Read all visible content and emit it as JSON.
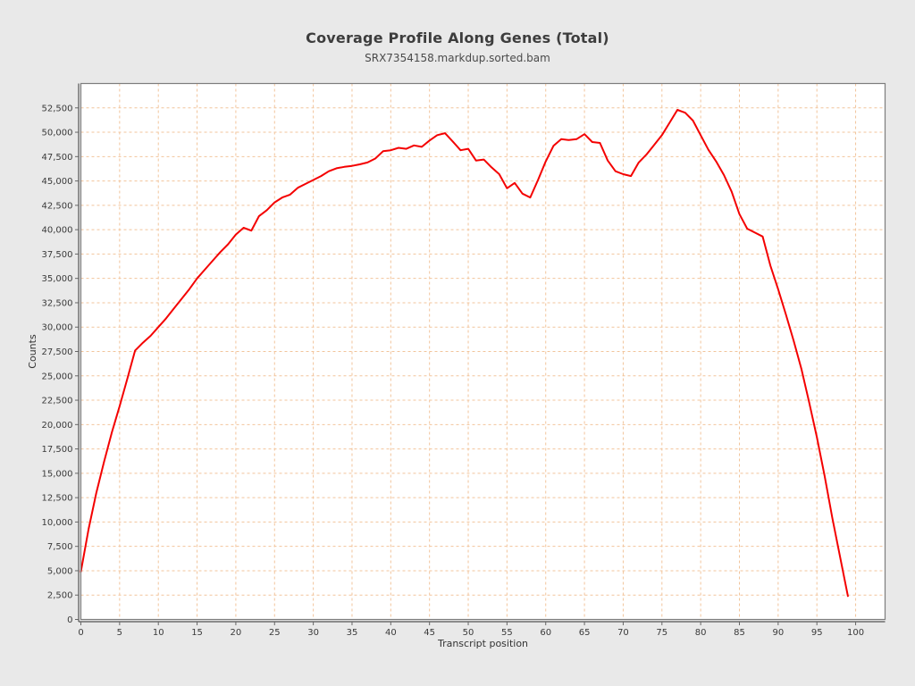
{
  "style": {
    "page_background": "#e9e9e9",
    "plot_background": "#ffffff",
    "grid_color": "#f2c49b",
    "frame_color": "#7d7d7d",
    "axis_line_color": "#555555",
    "tick_color": "#666666",
    "tick_label_color": "#3a3a3a",
    "title_color": "#3d3d3d",
    "subtitle_color": "#4a4a4a",
    "axis_title_color": "#333333"
  },
  "chart_data": {
    "type": "line",
    "title": "Coverage Profile Along Genes (Total)",
    "subtitle": "SRX7354158.markdup.sorted.bam",
    "xlabel": "Transcript position",
    "ylabel": "Counts",
    "x_range": [
      0,
      103.8
    ],
    "y_range": [
      0,
      55000
    ],
    "x_ticks": [
      0,
      5,
      10,
      15,
      20,
      25,
      30,
      35,
      40,
      45,
      50,
      55,
      60,
      65,
      70,
      75,
      80,
      85,
      90,
      95,
      100
    ],
    "y_ticks": [
      0,
      2500,
      5000,
      7500,
      10000,
      12500,
      15000,
      17500,
      20000,
      22500,
      25000,
      27500,
      30000,
      32500,
      35000,
      37500,
      40000,
      42500,
      45000,
      47500,
      50000,
      52500
    ],
    "grid": true,
    "grid_style": "dashed",
    "legend_position": "none",
    "series": [
      {
        "name": "SRX7354158.markdup.sorted.bam",
        "color": "#f40000",
        "x_start": 0,
        "x_step": 1,
        "values": [
          4900,
          9300,
          13000,
          16200,
          19200,
          21900,
          24700,
          27600,
          28400,
          29100,
          30000,
          30900,
          31900,
          32900,
          33900,
          35000,
          35900,
          36800,
          37700,
          38500,
          39500,
          40200,
          39900,
          41400,
          42000,
          42800,
          43300,
          43600,
          44300,
          44700,
          45100,
          45500,
          46000,
          46300,
          46450,
          46550,
          46700,
          46900,
          47300,
          48050,
          48150,
          48400,
          48300,
          48650,
          48500,
          49150,
          49700,
          49900,
          49050,
          48150,
          48300,
          47100,
          47200,
          46400,
          45700,
          44250,
          44800,
          43700,
          43300,
          45100,
          47000,
          48600,
          49300,
          49200,
          49300,
          49800,
          49000,
          48900,
          47100,
          46000,
          45700,
          45500,
          46900,
          47700,
          48700,
          49700,
          51000,
          52300,
          52000,
          51200,
          49700,
          48200,
          47000,
          45600,
          43900,
          41600,
          40100,
          39700,
          39300,
          36300,
          33900,
          31300,
          28600,
          25700,
          22300,
          18700,
          14700,
          10400,
          6400,
          2400
        ]
      }
    ]
  }
}
